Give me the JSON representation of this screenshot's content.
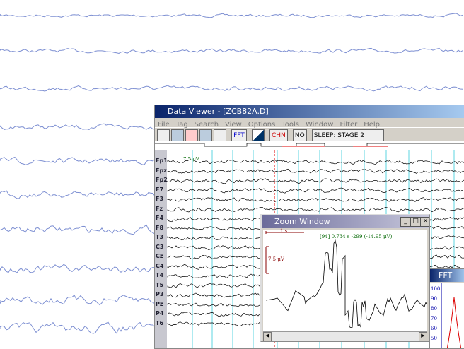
{
  "data_viewer": {
    "title": "Data Viewer - [ZCB82A.D]",
    "menu": [
      "File",
      "Tag",
      "Search",
      "View",
      "Options",
      "Tools",
      "Window",
      "Filter",
      "Help"
    ],
    "toolbar": {
      "fft": "FFT",
      "chn": "CHN",
      "no": "NO",
      "stage": "SLEEP: STAGE 2"
    },
    "scale_label": "7.5 μV",
    "channels": [
      "Fp1",
      "Fpz",
      "Fp2",
      "F7",
      "F3",
      "Fz",
      "F4",
      "F8",
      "T3",
      "C3",
      "Cz",
      "C4",
      "T4",
      "T5",
      "P3",
      "Pz",
      "P4",
      "T6"
    ]
  },
  "zoom_window": {
    "title": "Zoom Window",
    "time_scale": "1 s",
    "readout": "[94] 0.734 s -299 (-14.95 μV)",
    "amp_scale": "7.5 μV"
  },
  "fft_window": {
    "title": "FFT",
    "axis_labels": [
      "100",
      "90",
      "80",
      "70",
      "60",
      "50"
    ]
  }
}
